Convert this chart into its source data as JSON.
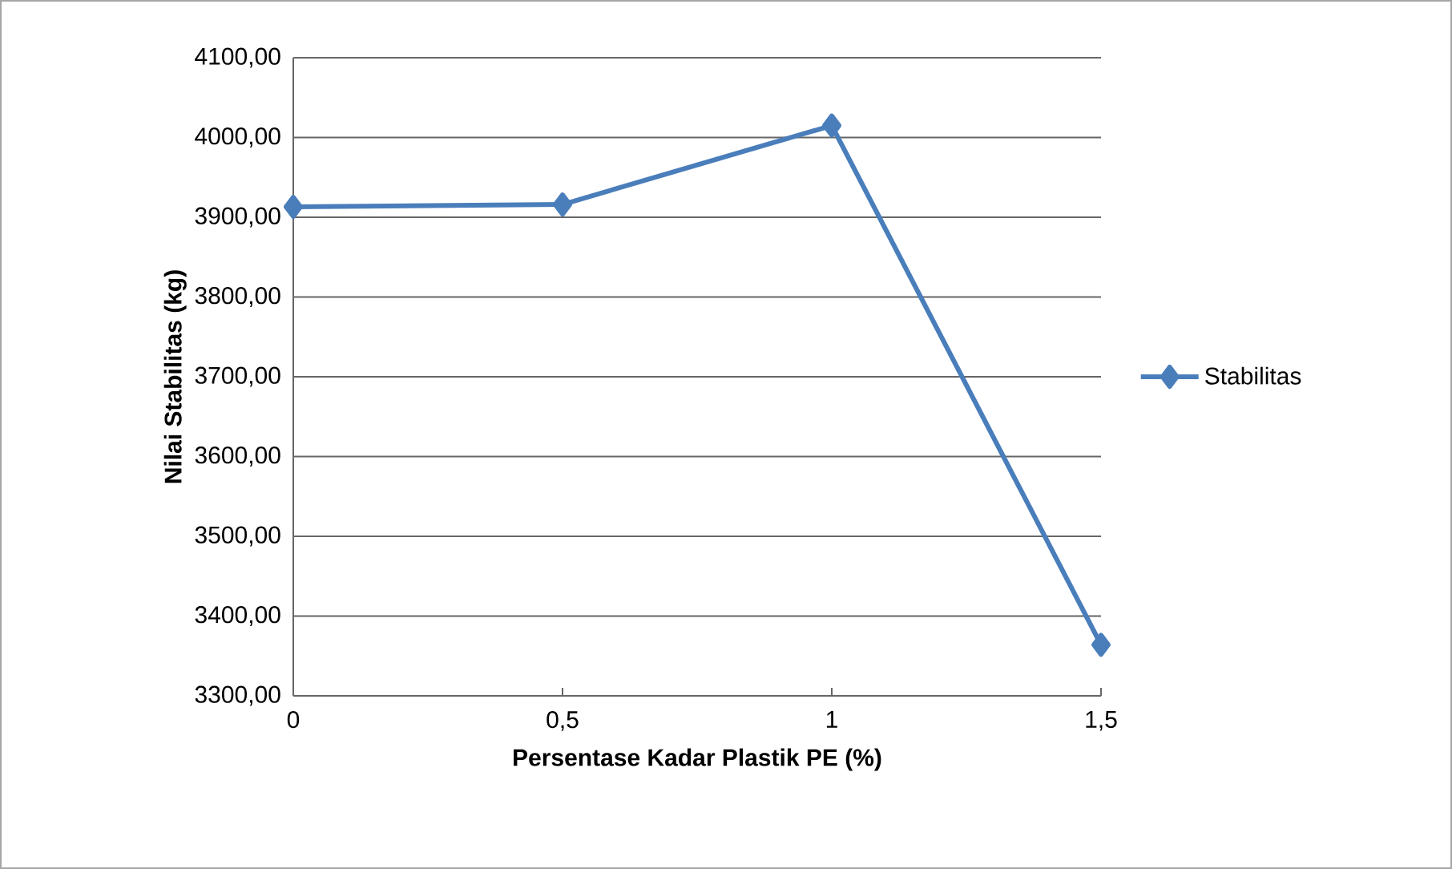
{
  "chart_data": {
    "type": "line",
    "xlabel": "Persentase Kadar Plastik PE (%)",
    "ylabel": "Nilai Stabilitas (kg)",
    "categories": [
      "0",
      "0,5",
      "1",
      "1,5"
    ],
    "series": [
      {
        "name": "Stabilitas",
        "color": "#4a7ebb",
        "values": [
          3913,
          3916,
          4015,
          3364
        ]
      }
    ],
    "ylim": [
      3300,
      4100
    ],
    "yticks": [
      {
        "value": 3300,
        "label": "3300,00"
      },
      {
        "value": 3400,
        "label": "3400,00"
      },
      {
        "value": 3500,
        "label": "3500,00"
      },
      {
        "value": 3600,
        "label": "3600,00"
      },
      {
        "value": 3700,
        "label": "3700,00"
      },
      {
        "value": 3800,
        "label": "3800,00"
      },
      {
        "value": 3900,
        "label": "3900,00"
      },
      {
        "value": 4000,
        "label": "4000,00"
      },
      {
        "value": 4100,
        "label": "4100,00"
      }
    ],
    "grid": "y",
    "legend": "right",
    "marker": "diamond",
    "line_style": "solid"
  }
}
